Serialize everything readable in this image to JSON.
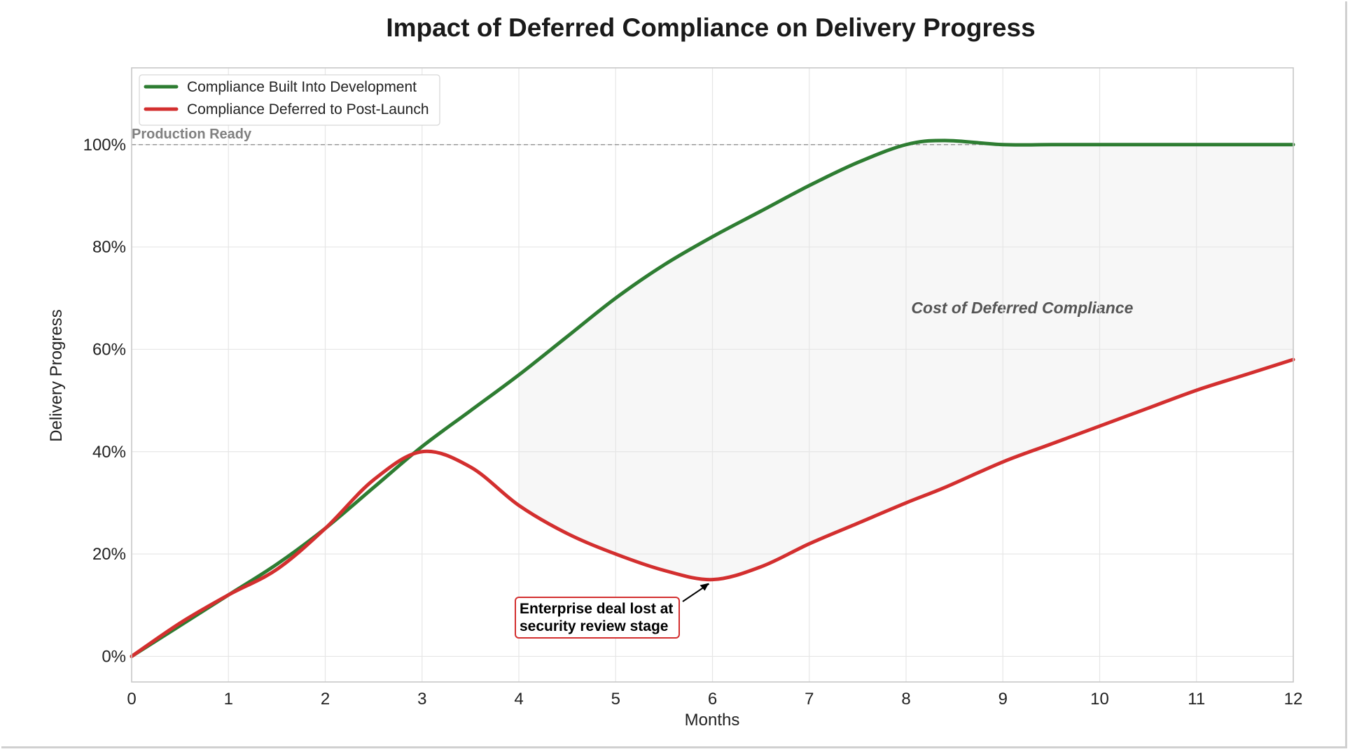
{
  "chart_data": {
    "type": "line",
    "title": "Impact of Deferred Compliance on Delivery Progress",
    "xlabel": "Months",
    "ylabel": "Delivery Progress",
    "xlim": [
      0,
      12
    ],
    "ylim": [
      -5,
      115
    ],
    "x_ticks": [
      "0",
      "1",
      "2",
      "3",
      "4",
      "5",
      "6",
      "7",
      "8",
      "9",
      "10",
      "11",
      "12"
    ],
    "y_ticks": [
      {
        "value": 0,
        "label": "0%"
      },
      {
        "value": 20,
        "label": "20%"
      },
      {
        "value": 40,
        "label": "40%"
      },
      {
        "value": 60,
        "label": "60%"
      },
      {
        "value": 80,
        "label": "80%"
      },
      {
        "value": 100,
        "label": "100%"
      }
    ],
    "grid": true,
    "legend_position": "upper-left",
    "x": [
      0,
      0.5,
      1,
      1.5,
      2,
      2.5,
      3,
      3.5,
      4,
      4.5,
      5,
      5.5,
      6,
      6.5,
      7,
      7.5,
      8,
      8.4,
      9,
      9.5,
      10,
      10.5,
      11,
      11.5,
      12
    ],
    "series": [
      {
        "name": "Compliance Built Into Development",
        "color": "#2e7d32",
        "values": [
          0,
          6,
          12,
          18,
          25,
          33,
          41,
          48,
          55,
          62.5,
          70,
          76.5,
          82,
          87,
          92,
          96.5,
          100,
          100.8,
          100,
          100,
          100,
          100,
          100,
          100,
          100
        ]
      },
      {
        "name": "Compliance Deferred to Post-Launch",
        "color": "#d32f2f",
        "values": [
          0,
          6.5,
          12,
          17,
          25,
          34.5,
          40,
          37,
          29.5,
          24,
          20,
          16.8,
          15,
          17.5,
          22,
          26,
          30,
          33,
          38,
          41.5,
          45,
          48.5,
          52,
          55,
          58
        ]
      }
    ],
    "reference_line": {
      "y": 100,
      "label": "Production Ready",
      "color": "#999999"
    },
    "shaded_region": {
      "x_start": 4,
      "x_end": 12,
      "label": "Cost of Deferred Compliance",
      "color": "#f7f7f7"
    },
    "annotation": {
      "line1": "Enterprise deal lost at",
      "line2": "security review stage",
      "x": 6,
      "y": 15,
      "border_color": "#d32f2f"
    }
  }
}
